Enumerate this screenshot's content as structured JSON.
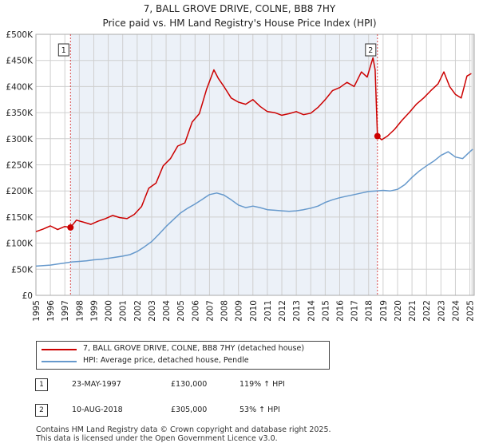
{
  "title_line1": "7, BALL GROVE DRIVE, COLNE, BB8 7HY",
  "title_line2": "Price paid vs. HM Land Registry's House Price Index (HPI)",
  "colors": {
    "property": "#cc0000",
    "hpi": "#6699cc",
    "marker": "#cc0000",
    "shade": "#dde6f3"
  },
  "chart_data": {
    "type": "line",
    "title": "7, BALL GROVE DRIVE, COLNE, BB8 7HY",
    "subtitle": "Price paid vs. HM Land Registry's House Price Index (HPI)",
    "xlabel": "",
    "ylabel": "",
    "xlim": [
      1995,
      2025.3
    ],
    "ylim": [
      0,
      500000
    ],
    "y_ticks": [
      0,
      50000,
      100000,
      150000,
      200000,
      250000,
      300000,
      350000,
      400000,
      450000,
      500000
    ],
    "y_tick_labels": [
      "£0",
      "£50K",
      "£100K",
      "£150K",
      "£200K",
      "£250K",
      "£300K",
      "£350K",
      "£400K",
      "£450K",
      "£500K"
    ],
    "x_ticks": [
      1995,
      1996,
      1997,
      1998,
      1999,
      2000,
      2001,
      2002,
      2003,
      2004,
      2005,
      2006,
      2007,
      2008,
      2009,
      2010,
      2011,
      2012,
      2013,
      2014,
      2015,
      2016,
      2017,
      2018,
      2019,
      2020,
      2021,
      2022,
      2023,
      2024,
      2025
    ],
    "x_tick_labels": [
      "1995",
      "1996",
      "1997",
      "1998",
      "1999",
      "2000",
      "2001",
      "2002",
      "2003",
      "2004",
      "2005",
      "2006",
      "2007",
      "2008",
      "2009",
      "2010",
      "2011",
      "2012",
      "2013",
      "2014",
      "2015",
      "2016",
      "2017",
      "2018",
      "2019",
      "2020",
      "2021",
      "2022",
      "2023",
      "2024",
      "2025"
    ],
    "grid": true,
    "series": [
      {
        "name": "7, BALL GROVE DRIVE, COLNE, BB8 7HY (detached house)",
        "color": "#cc0000",
        "x": [
          1995.0,
          1995.5,
          1996.0,
          1996.5,
          1997.0,
          1997.39,
          1997.8,
          1998.3,
          1998.8,
          1999.3,
          1999.8,
          2000.3,
          2000.8,
          2001.3,
          2001.8,
          2002.3,
          2002.8,
          2003.3,
          2003.8,
          2004.3,
          2004.8,
          2005.3,
          2005.8,
          2006.3,
          2006.8,
          2007.3,
          2007.6,
          2008.0,
          2008.5,
          2009.0,
          2009.5,
          2010.0,
          2010.5,
          2011.0,
          2011.5,
          2012.0,
          2012.5,
          2013.0,
          2013.5,
          2014.0,
          2014.5,
          2015.0,
          2015.5,
          2016.0,
          2016.5,
          2017.0,
          2017.5,
          2017.9,
          2018.3,
          2018.45,
          2018.61,
          2018.9,
          2019.3,
          2019.8,
          2020.3,
          2020.8,
          2021.3,
          2021.8,
          2022.3,
          2022.8,
          2023.2,
          2023.6,
          2024.0,
          2024.4,
          2024.8,
          2025.1
        ],
        "values": [
          122000,
          127000,
          133000,
          126000,
          132000,
          130000,
          144000,
          140000,
          136000,
          142000,
          147000,
          153000,
          149000,
          147000,
          155000,
          170000,
          205000,
          215000,
          248000,
          262000,
          286000,
          292000,
          332000,
          348000,
          395000,
          432000,
          416000,
          400000,
          378000,
          370000,
          366000,
          375000,
          362000,
          352000,
          350000,
          345000,
          348000,
          352000,
          346000,
          349000,
          360000,
          375000,
          392000,
          398000,
          408000,
          400000,
          428000,
          418000,
          455000,
          432000,
          305000,
          298000,
          305000,
          318000,
          335000,
          350000,
          366000,
          378000,
          392000,
          405000,
          428000,
          400000,
          385000,
          378000,
          420000,
          425000
        ]
      },
      {
        "name": "HPI: Average price, detached house, Pendle",
        "color": "#6699cc",
        "x": [
          1995.0,
          1995.5,
          1996.0,
          1996.5,
          1997.0,
          1997.5,
          1998.0,
          1998.5,
          1999.0,
          1999.5,
          2000.0,
          2000.5,
          2001.0,
          2001.5,
          2002.0,
          2002.5,
          2003.0,
          2003.5,
          2004.0,
          2004.5,
          2005.0,
          2005.5,
          2006.0,
          2006.5,
          2007.0,
          2007.5,
          2008.0,
          2008.5,
          2009.0,
          2009.5,
          2010.0,
          2010.5,
          2011.0,
          2011.5,
          2012.0,
          2012.5,
          2013.0,
          2013.5,
          2014.0,
          2014.5,
          2015.0,
          2015.5,
          2016.0,
          2016.5,
          2017.0,
          2017.5,
          2018.0,
          2018.5,
          2019.0,
          2019.5,
          2020.0,
          2020.5,
          2021.0,
          2021.5,
          2022.0,
          2022.5,
          2023.0,
          2023.5,
          2024.0,
          2024.5,
          2025.0,
          2025.2
        ],
        "values": [
          56000,
          57000,
          58000,
          60000,
          62000,
          64000,
          65000,
          66000,
          68000,
          69000,
          71000,
          73000,
          75000,
          78000,
          84000,
          93000,
          103000,
          117000,
          132000,
          145000,
          158000,
          167000,
          175000,
          184000,
          193000,
          196000,
          192000,
          183000,
          173000,
          168000,
          171000,
          168000,
          164000,
          163000,
          162000,
          161000,
          162000,
          164000,
          167000,
          171000,
          178000,
          183000,
          187000,
          190000,
          193000,
          196000,
          199000,
          200000,
          201000,
          200000,
          203000,
          212000,
          226000,
          238000,
          248000,
          257000,
          268000,
          275000,
          265000,
          262000,
          275000,
          280000
        ]
      }
    ],
    "shaded_region": [
      1997.39,
      2018.61
    ],
    "sales": [
      {
        "label": "1",
        "x": 1997.39,
        "value": 130000
      },
      {
        "label": "2",
        "x": 2018.61,
        "value": 305000
      }
    ]
  },
  "legend": {
    "property_label": "7, BALL GROVE DRIVE, COLNE, BB8 7HY (detached house)",
    "hpi_label": "HPI: Average price, detached house, Pendle"
  },
  "sales_table": [
    {
      "num": "1",
      "date": "23-MAY-1997",
      "price": "£130,000",
      "hpi": "119% ↑ HPI"
    },
    {
      "num": "2",
      "date": "10-AUG-2018",
      "price": "£305,000",
      "hpi": "53% ↑ HPI"
    }
  ],
  "footer_line1": "Contains HM Land Registry data © Crown copyright and database right 2025.",
  "footer_line2": "This data is licensed under the Open Government Licence v3.0."
}
